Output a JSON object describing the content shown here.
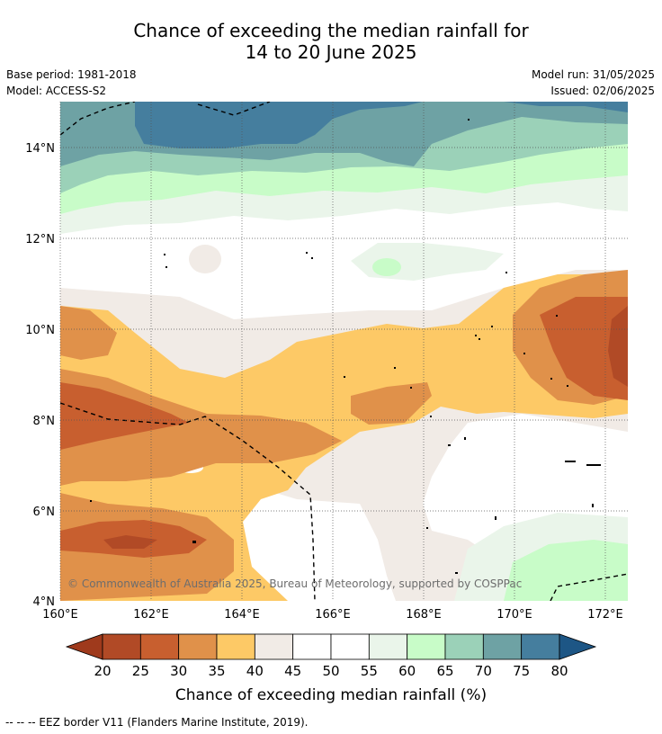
{
  "title": {
    "line1": "Chance of exceeding the median rainfall for",
    "line2": "14 to 20 June 2025"
  },
  "meta": {
    "base_period": "Base period: 1981-2018",
    "model": "Model: ACCESS-S2",
    "model_run": "Model run: 31/05/2025",
    "issued": "Issued: 02/06/2025"
  },
  "map": {
    "x_ticks": [
      "160°E",
      "162°E",
      "164°E",
      "166°E",
      "168°E",
      "170°E",
      "172°E"
    ],
    "y_ticks": [
      "14°N",
      "12°N",
      "10°N",
      "8°N",
      "6°N",
      "4°N"
    ],
    "copyright": "© Commonwealth of Australia 2025, Bureau of Meteorology, supported by COSPPac"
  },
  "colorbar": {
    "labels": [
      "20",
      "25",
      "30",
      "35",
      "40",
      "45",
      "50",
      "55",
      "60",
      "65",
      "70",
      "75",
      "80"
    ],
    "colors": [
      "#9f3a1c",
      "#b14a26",
      "#c85f2f",
      "#e0914a",
      "#fdc966",
      "#f1ebe6",
      "#ffffff",
      "#ffffff",
      "#eaf5ea",
      "#c8fcc8",
      "#9bd1b8",
      "#6ea2a4",
      "#457e9e",
      "#1d5685"
    ],
    "label": "Chance of exceeding median rainfall (%)"
  },
  "footer": {
    "text": "--  --  -- EEZ border V11 (Flanders Marine Institute, 2019)."
  }
}
